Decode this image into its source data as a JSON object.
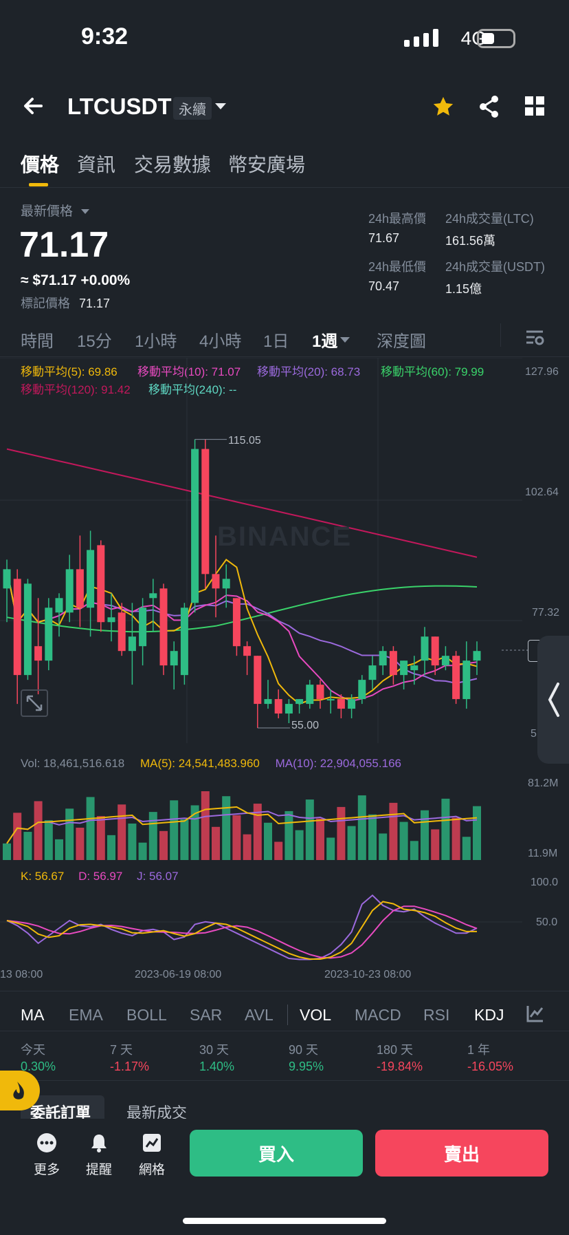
{
  "status": {
    "time": "9:32",
    "network": "4G"
  },
  "header": {
    "symbol": "LTCUSDT",
    "contract": "永續"
  },
  "tabs": [
    "價格",
    "資訊",
    "交易數據",
    "幣安廣場"
  ],
  "price": {
    "latest_label": "最新價格",
    "last": "71.17",
    "usd_change": "≈ $71.17 +0.00%",
    "mark_label": "標記價格",
    "mark_value": "71.17"
  },
  "stats": {
    "high_label": "24h最高價",
    "high": "71.67",
    "vol_ltc_label": "24h成交量(LTC)",
    "vol_ltc": "161.56萬",
    "low_label": "24h最低價",
    "low": "70.47",
    "vol_usdt_label": "24h成交量(USDT)",
    "vol_usdt": "1.15億"
  },
  "timeframes": [
    "時間",
    "15分",
    "1小時",
    "4小時",
    "1日",
    "1週",
    "深度圖"
  ],
  "ma_labels": [
    {
      "text": "移動平均(5): 69.86",
      "color": "#f0b90b"
    },
    {
      "text": "移動平均(10): 71.07",
      "color": "#e84ac0"
    },
    {
      "text": "移動平均(20): 68.73",
      "color": "#9c6ade"
    },
    {
      "text": "移動平均(60): 79.99",
      "color": "#3ad36a"
    },
    {
      "text": "移動平均(120): 91.42",
      "color": "#c2185b"
    },
    {
      "text": "移動平均(240): --",
      "color": "#5fd9c4"
    }
  ],
  "price_axis": [
    "127.96",
    "102.64",
    "77.32",
    "5"
  ],
  "annotations": {
    "high": "115.05",
    "low": "55.00",
    "watermark": "BINANCE"
  },
  "volume": {
    "vol_label": "Vol: 18,461,516.618",
    "ma5_label": "MA(5): 24,541,483.960",
    "ma10_label": "MA(10): 22,904,055.166",
    "axis_top": "81.2M",
    "axis_bottom": "11.9M"
  },
  "kdj": {
    "k": "K: 56.67",
    "d": "D: 56.97",
    "j": "J: 56.07",
    "axis_top": "100.0",
    "axis_mid": "50.0"
  },
  "time_axis": [
    "13 08:00",
    "2023-06-19 08:00",
    "2023-10-23 08:00"
  ],
  "indicators": [
    "MA",
    "EMA",
    "BOLL",
    "SAR",
    "AVL",
    "VOL",
    "MACD",
    "RSI",
    "KDJ"
  ],
  "performance": [
    {
      "label": "今天",
      "value": "0.30%",
      "color": "#2ebd85"
    },
    {
      "label": "7 天",
      "value": "-1.17%",
      "color": "#f6465d"
    },
    {
      "label": "30 天",
      "value": "1.40%",
      "color": "#2ebd85"
    },
    {
      "label": "90 天",
      "value": "9.95%",
      "color": "#2ebd85"
    },
    {
      "label": "180 天",
      "value": "-19.84%",
      "color": "#f6465d"
    },
    {
      "label": "1 年",
      "value": "-16.05%",
      "color": "#f6465d"
    }
  ],
  "order_tabs": [
    "委託訂單",
    "最新成交"
  ],
  "bottom": {
    "more": "更多",
    "alert": "提醒",
    "grid": "網格",
    "buy": "買入",
    "sell": "賣出"
  },
  "colors": {
    "up": "#2ebd85",
    "down": "#f6465d",
    "accent": "#f0b90b",
    "bg": "#1e2329"
  },
  "chart_data": {
    "type": "candlestick",
    "interval": "1週",
    "price_axis_ticks": [
      127.96,
      102.64,
      77.32
    ],
    "annotated_high": 115.05,
    "annotated_low": 55.0,
    "candles": [
      {
        "o": 84,
        "h": 90,
        "l": 77,
        "c": 88
      },
      {
        "o": 86,
        "h": 88,
        "l": 60,
        "c": 66
      },
      {
        "o": 66,
        "h": 86,
        "l": 65,
        "c": 85
      },
      {
        "o": 72,
        "h": 82,
        "l": 62,
        "c": 69
      },
      {
        "o": 69,
        "h": 82,
        "l": 67,
        "c": 80
      },
      {
        "o": 79,
        "h": 83,
        "l": 74,
        "c": 82
      },
      {
        "o": 79,
        "h": 91,
        "l": 77,
        "c": 88
      },
      {
        "o": 88,
        "h": 95,
        "l": 76,
        "c": 80
      },
      {
        "o": 80,
        "h": 96,
        "l": 74,
        "c": 92
      },
      {
        "o": 93,
        "h": 94,
        "l": 75,
        "c": 77
      },
      {
        "o": 77,
        "h": 83,
        "l": 73,
        "c": 78
      },
      {
        "o": 79,
        "h": 81,
        "l": 70,
        "c": 71
      },
      {
        "o": 71,
        "h": 81,
        "l": 64,
        "c": 74
      },
      {
        "o": 72,
        "h": 82,
        "l": 68,
        "c": 80
      },
      {
        "o": 82,
        "h": 86,
        "l": 75,
        "c": 83
      },
      {
        "o": 84,
        "h": 85,
        "l": 66,
        "c": 68
      },
      {
        "o": 68,
        "h": 73,
        "l": 63,
        "c": 71
      },
      {
        "o": 66,
        "h": 81,
        "l": 64,
        "c": 80
      },
      {
        "o": 81,
        "h": 115,
        "l": 79,
        "c": 113
      },
      {
        "o": 113,
        "h": 115,
        "l": 84,
        "c": 87
      },
      {
        "o": 87,
        "h": 95,
        "l": 78,
        "c": 84
      },
      {
        "o": 84,
        "h": 89,
        "l": 80,
        "c": 86
      },
      {
        "o": 82,
        "h": 82,
        "l": 70,
        "c": 72
      },
      {
        "o": 72,
        "h": 73,
        "l": 66,
        "c": 70
      },
      {
        "o": 70,
        "h": 70,
        "l": 55,
        "c": 60
      },
      {
        "o": 60,
        "h": 65,
        "l": 59,
        "c": 61
      },
      {
        "o": 61,
        "h": 63,
        "l": 57,
        "c": 58
      },
      {
        "o": 58,
        "h": 61,
        "l": 56,
        "c": 60
      },
      {
        "o": 60,
        "h": 61,
        "l": 58,
        "c": 61
      },
      {
        "o": 60,
        "h": 65,
        "l": 59,
        "c": 64
      },
      {
        "o": 64,
        "h": 65,
        "l": 59,
        "c": 61
      },
      {
        "o": 61,
        "h": 63,
        "l": 58,
        "c": 61
      },
      {
        "o": 61,
        "h": 62,
        "l": 57,
        "c": 59
      },
      {
        "o": 59,
        "h": 62,
        "l": 57,
        "c": 61
      },
      {
        "o": 61,
        "h": 66,
        "l": 60,
        "c": 65
      },
      {
        "o": 65,
        "h": 70,
        "l": 63,
        "c": 68
      },
      {
        "o": 68,
        "h": 72,
        "l": 66,
        "c": 71
      },
      {
        "o": 71,
        "h": 72,
        "l": 64,
        "c": 66
      },
      {
        "o": 66,
        "h": 69,
        "l": 63,
        "c": 69
      },
      {
        "o": 67,
        "h": 70,
        "l": 64,
        "c": 68
      },
      {
        "o": 69,
        "h": 76,
        "l": 66,
        "c": 74
      },
      {
        "o": 74,
        "h": 74,
        "l": 66,
        "c": 68
      },
      {
        "o": 68,
        "h": 72,
        "l": 67,
        "c": 70
      },
      {
        "o": 70,
        "h": 71,
        "l": 60,
        "c": 61
      },
      {
        "o": 61,
        "h": 73,
        "l": 59,
        "c": 69
      },
      {
        "o": 69,
        "h": 73,
        "l": 66,
        "c": 71
      }
    ]
  }
}
